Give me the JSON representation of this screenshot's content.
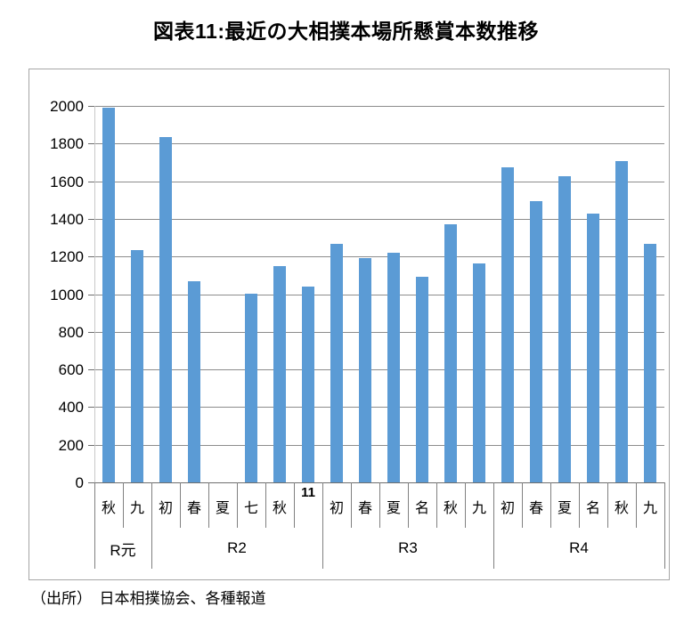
{
  "title": "図表11:最近の大相撲本場所懸賞本数推移",
  "source_note": "（出所）　日本相撲協会、各種報道",
  "colors": {
    "bar": "#5B9BD5",
    "gridline": "#8c8c8c",
    "axis": "#6e6e6e",
    "chart_border": "#a6a6a6",
    "title_text": "#000000"
  },
  "chart_data": {
    "type": "bar",
    "title": "図表11:最近の大相撲本場所懸賞本数推移",
    "categories": [
      "秋",
      "九",
      "初",
      "春",
      "夏",
      "七",
      "秋",
      "11",
      "初",
      "春",
      "夏",
      "名",
      "秋",
      "九",
      "初",
      "春",
      "夏",
      "名",
      "秋",
      "九"
    ],
    "values": [
      1990,
      1235,
      1835,
      1070,
      0,
      1000,
      1150,
      1040,
      1265,
      1190,
      1220,
      1090,
      1370,
      1165,
      1675,
      1495,
      1625,
      1430,
      1705,
      1265
    ],
    "groups": [
      {
        "label": "R元",
        "span": 2
      },
      {
        "label": "R2",
        "span": 6
      },
      {
        "label": "R3",
        "span": 6
      },
      {
        "label": "R4",
        "span": 6
      }
    ],
    "xlabel": "",
    "ylabel": "",
    "ylim": [
      0,
      2000
    ],
    "ytick_step": 200,
    "yticks": [
      "0",
      "200",
      "400",
      "600",
      "800",
      "1000",
      "1200",
      "1400",
      "1600",
      "1800",
      "2000"
    ],
    "grid": true,
    "legend": false,
    "source": "（出所）　日本相撲協会、各種報道"
  }
}
